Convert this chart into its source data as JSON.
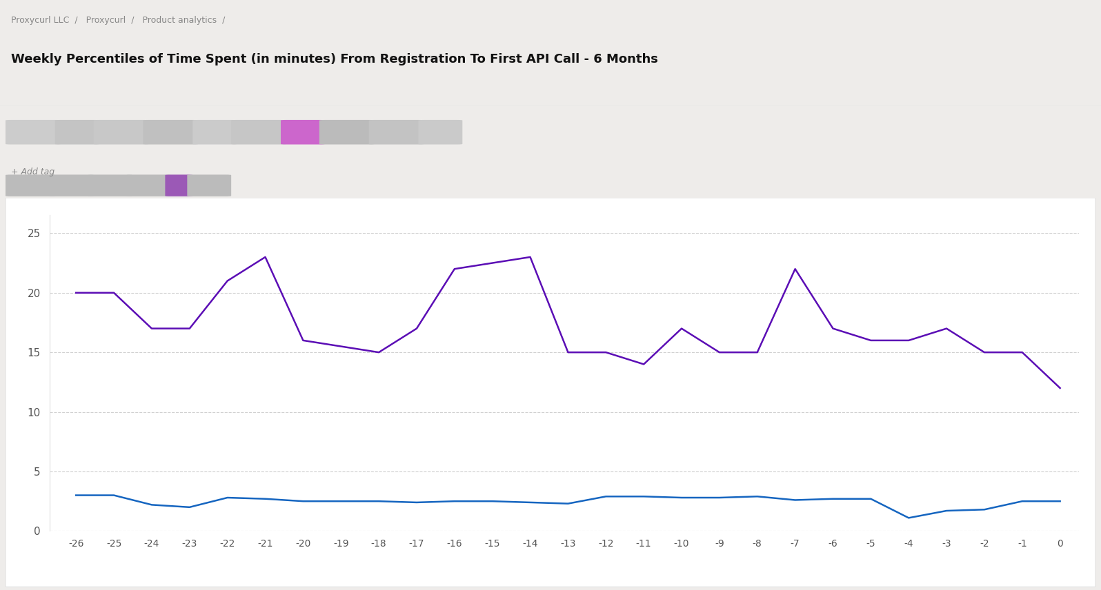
{
  "x_values": [
    -26,
    -25,
    -24,
    -23,
    -22,
    -21,
    -20,
    -19,
    -18,
    -17,
    -16,
    -15,
    -14,
    -13,
    -12,
    -11,
    -10,
    -9,
    -8,
    -7,
    -6,
    -5,
    -4,
    -3,
    -2,
    -1,
    0
  ],
  "purple_line": [
    20,
    20,
    17,
    17,
    21,
    23,
    16,
    15.5,
    15,
    17,
    22,
    22.5,
    23,
    15,
    15,
    14,
    17,
    15,
    15,
    22,
    17,
    16,
    16,
    17,
    15,
    15,
    12
  ],
  "blue_line": [
    3.0,
    3.0,
    2.2,
    2.0,
    2.8,
    2.7,
    2.5,
    2.5,
    2.5,
    2.4,
    2.5,
    2.5,
    2.4,
    2.3,
    2.9,
    2.9,
    2.8,
    2.8,
    2.9,
    2.6,
    2.7,
    2.7,
    1.1,
    1.7,
    1.8,
    2.5,
    2.5
  ],
  "purple_color": "#5B0DB5",
  "blue_color": "#1565C0",
  "chart_bg": "#ffffff",
  "outer_bg": "#EEECEA",
  "header_bg": "#F5F4F0",
  "grid_color": "#CCCCCC",
  "tick_color": "#555555",
  "border_color": "#DDDDDD",
  "y_ticks": [
    0,
    5,
    10,
    15,
    20,
    25
  ],
  "ylim": [
    0,
    26.5
  ],
  "line_width": 1.8,
  "breadcrumb": "Proxycurl LLC  /   Proxycurl  /   Product analytics  /",
  "title": "Weekly Percentiles of Time Spent (in minutes) From Registration To First API Call - 6 Months"
}
